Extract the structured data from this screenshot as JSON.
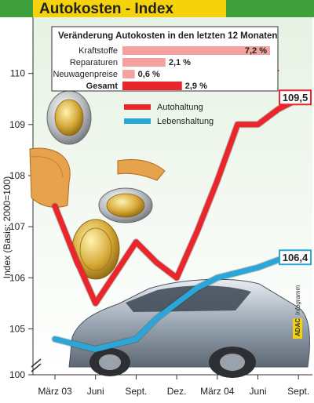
{
  "chart_data": {
    "type": "line",
    "title": "Autokosten - Index",
    "ylabel": "Index (Basis: 2000=100)",
    "ylim": [
      100,
      111.5
    ],
    "yticks": [
      100,
      105,
      106,
      107,
      108,
      109,
      110
    ],
    "grid": false,
    "categories": [
      "März 03",
      "Juni",
      "Sept.",
      "Dez.",
      "März 04",
      "Juni",
      "Sept."
    ],
    "x": [
      0,
      0.5,
      1,
      1.5,
      2,
      2.5,
      3,
      3.5,
      4,
      4.5,
      5,
      5.5,
      6
    ],
    "series": [
      {
        "name": "Autohaltung",
        "color": "#e8262b",
        "values": [
          107.4,
          106.4,
          105.5,
          106.1,
          106.7,
          106.3,
          106.0,
          106.9,
          107.9,
          109.0,
          109.0,
          109.3,
          109.5
        ],
        "end_label": "109,5"
      },
      {
        "name": "Lebenshaltung",
        "color": "#2aa6d8",
        "values": [
          104.8,
          104.7,
          104.6,
          104.7,
          104.8,
          105.2,
          105.5,
          105.8,
          106.0,
          106.1,
          106.2,
          106.35,
          106.4
        ],
        "end_label": "106,4"
      }
    ],
    "legend": {
      "placement": "top-center",
      "entries": [
        "Autohaltung",
        "Lebenshaltung"
      ]
    },
    "inset": {
      "title": "Veränderung Autokosten in den letzten 12 Monaten",
      "items": [
        {
          "label": "Kraftstoffe",
          "value": 7.2,
          "display": "7,2 %",
          "bold": false
        },
        {
          "label": "Reparaturen",
          "value": 2.1,
          "display": "2,1 %",
          "bold": false
        },
        {
          "label": "Neuwagenpreise",
          "value": 0.6,
          "display": "0,6 %",
          "bold": false
        },
        {
          "label": "Gesamt",
          "value": 2.9,
          "display": "2,9 %",
          "bold": true
        }
      ]
    },
    "credit": {
      "brand": "ADAC",
      "text": "Infogramm"
    }
  },
  "colors": {
    "title_bg": "#f6d20a",
    "header_band": "#3f9f3c",
    "plot_bg_top": "#e8f3e4",
    "plot_bg_bottom": "#ffffff",
    "red": "#e8262b",
    "blue": "#2aa6d8",
    "bar_red": "#e8262b",
    "bar_pink": "#f4a1a0"
  }
}
